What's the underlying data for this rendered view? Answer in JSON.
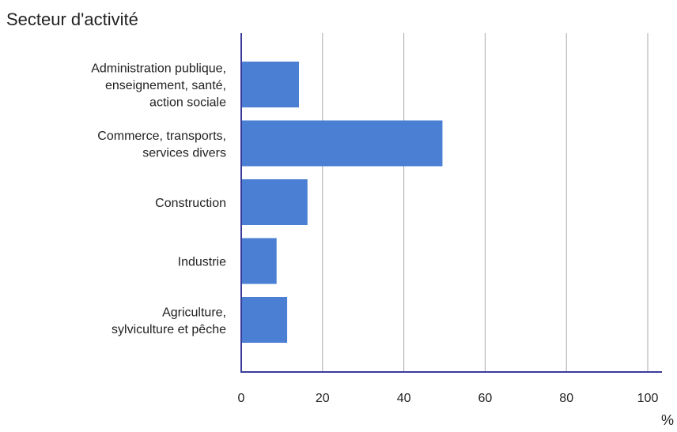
{
  "chart_data": {
    "type": "bar",
    "orientation": "horizontal",
    "title": "Secteur d'activité",
    "xlabel": "%",
    "ylabel": "",
    "categories": [
      "Administration publique, enseignement, santé, action sociale",
      "Commerce, transports, services divers",
      "Construction",
      "Industrie",
      "Agriculture, sylviculture et pêche"
    ],
    "category_lines": [
      [
        "Administration publique,",
        "enseignement, santé,",
        "action sociale"
      ],
      [
        "Commerce, transports,",
        "services divers"
      ],
      [
        "Construction"
      ],
      [
        "Industrie"
      ],
      [
        "Agriculture,",
        "sylviculture et pêche"
      ]
    ],
    "values": [
      14.2,
      49.5,
      16.3,
      8.7,
      11.3
    ],
    "xlim": [
      0,
      100
    ],
    "xticks": [
      0,
      20,
      40,
      60,
      80,
      100
    ],
    "grid": true,
    "legend": "none",
    "colors": {
      "bar": "#4a7fd4",
      "axis": "#3b3b9c",
      "grid": "#aaaaaa"
    }
  }
}
